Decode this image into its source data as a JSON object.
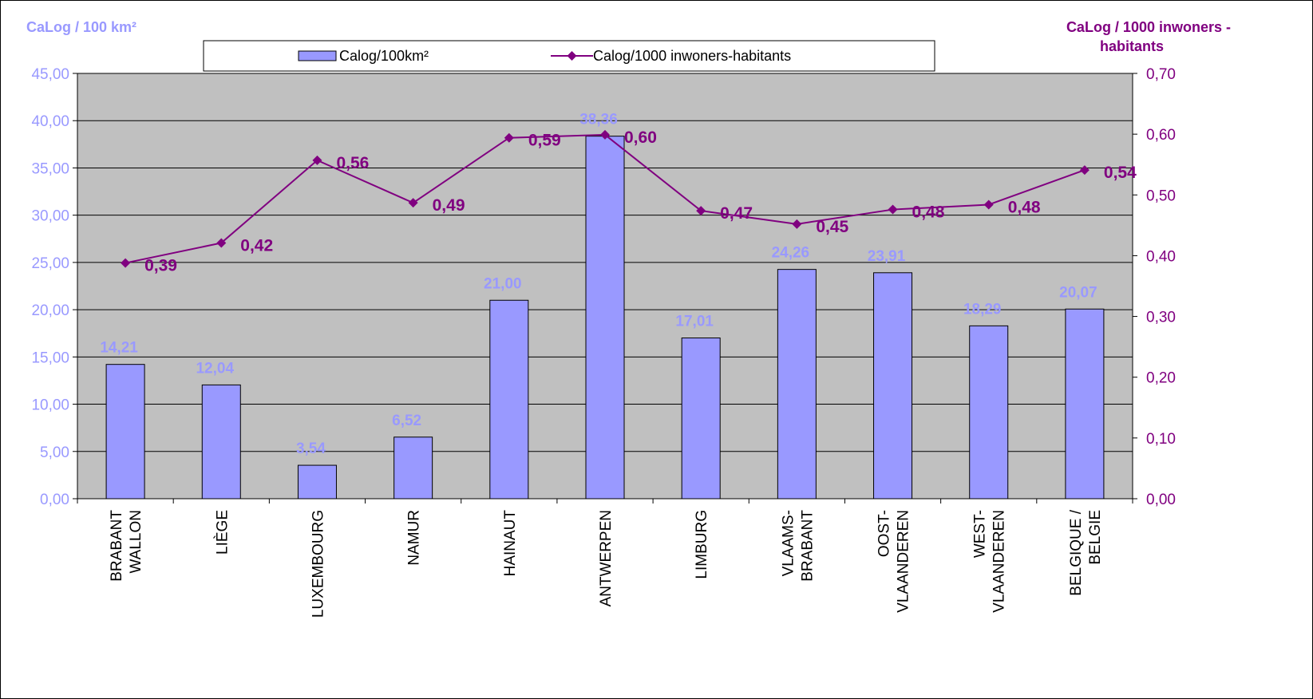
{
  "chart_data": {
    "type": "bar",
    "categories": [
      [
        "BRABANT",
        "WALLON"
      ],
      [
        "LIÈGE"
      ],
      [
        "LUXEMBOURG"
      ],
      [
        "NAMUR"
      ],
      [
        "HAINAUT"
      ],
      [
        "ANTWERPEN"
      ],
      [
        "LIMBURG"
      ],
      [
        "VLAAMS-",
        "BRABANT"
      ],
      [
        "OOST-",
        "VLAANDEREN"
      ],
      [
        "WEST-",
        "VLAANDEREN"
      ],
      [
        "BELGIQUE /",
        "BELGIE"
      ]
    ],
    "series": [
      {
        "name": "Calog/100km²",
        "type": "bar",
        "axis": "left",
        "values": [
          14.21,
          12.04,
          3.54,
          6.52,
          21.0,
          38.36,
          17.01,
          24.26,
          23.91,
          18.29,
          20.07
        ],
        "labels": [
          "14,21",
          "12,04",
          "3,54",
          "6,52",
          "21,00",
          "38,36",
          "17,01",
          "24,26",
          "23,91",
          "18,29",
          "20,07"
        ]
      },
      {
        "name": "Calog/1000 inwoners-habitants",
        "type": "line",
        "axis": "right",
        "values": [
          0.388,
          0.421,
          0.557,
          0.487,
          0.594,
          0.599,
          0.474,
          0.452,
          0.476,
          0.484,
          0.541
        ],
        "labels": [
          "0,39",
          "0,42",
          "0,56",
          "0,49",
          "0,59",
          "0,60",
          "0,47",
          "0,45",
          "0,48",
          "0,48",
          "0,54"
        ]
      }
    ],
    "ylabel_left": "CaLog / 100 km²",
    "ylabel_right": [
      "CaLog / 1000 inwoners -",
      "habitants"
    ],
    "ylim_left": [
      0,
      45
    ],
    "ylim_right": [
      0,
      0.7
    ],
    "yticks_left": [
      "0,00",
      "5,00",
      "10,00",
      "15,00",
      "20,00",
      "25,00",
      "30,00",
      "35,00",
      "40,00",
      "45,00"
    ],
    "yticks_right": [
      "0,00",
      "0,10",
      "0,20",
      "0,30",
      "0,40",
      "0,50",
      "0,60",
      "0,70"
    ],
    "grid": true,
    "legend": "top",
    "colors": {
      "bar_fill": "#9999ff",
      "bar_label": "#9999ff",
      "line": "#800080",
      "plot_bg": "#c0c0c0",
      "left_axis_text": "#9999ff",
      "right_axis_text": "#800080"
    }
  }
}
